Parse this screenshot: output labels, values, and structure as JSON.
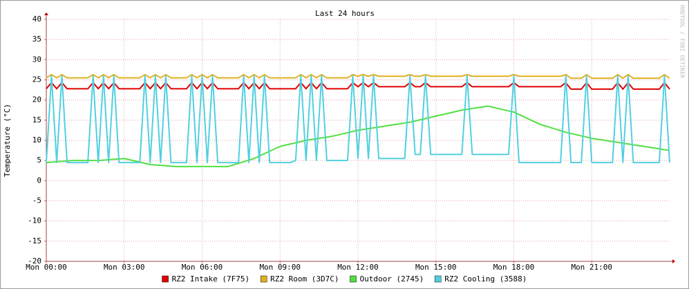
{
  "chart_data": {
    "type": "line",
    "title": "Last 24 hours",
    "y_label": "Temperature (°C)",
    "watermark": "RRDTOOL / TOBI OETIKER",
    "xlim": [
      0,
      24
    ],
    "ylim": [
      -20,
      40
    ],
    "grid": true,
    "xticks": [
      {
        "value": 0,
        "label": "Mon 00:00"
      },
      {
        "value": 3,
        "label": "Mon 03:00"
      },
      {
        "value": 6,
        "label": "Mon 06:00"
      },
      {
        "value": 9,
        "label": "Mon 09:00"
      },
      {
        "value": 12,
        "label": "Mon 12:00"
      },
      {
        "value": 15,
        "label": "Mon 15:00"
      },
      {
        "value": 18,
        "label": "Mon 18:00"
      },
      {
        "value": 21,
        "label": "Mon 21:00"
      }
    ],
    "yticks": [
      -20,
      -15,
      -10,
      -5,
      0,
      5,
      10,
      15,
      20,
      25,
      30,
      35,
      40
    ],
    "x": [
      0,
      0.2,
      0.4,
      0.6,
      0.8,
      1,
      1.2,
      1.4,
      1.6,
      1.8,
      2,
      2.2,
      2.4,
      2.6,
      2.8,
      3,
      3.2,
      3.4,
      3.6,
      3.8,
      4,
      4.2,
      4.4,
      4.6,
      4.8,
      5,
      5.2,
      5.4,
      5.6,
      5.8,
      6,
      6.2,
      6.4,
      6.6,
      6.8,
      7,
      7.2,
      7.4,
      7.6,
      7.8,
      8,
      8.2,
      8.4,
      8.6,
      8.8,
      9,
      9.2,
      9.4,
      9.6,
      9.8,
      10,
      10.2,
      10.4,
      10.6,
      10.8,
      11,
      11.2,
      11.4,
      11.6,
      11.8,
      12,
      12.2,
      12.4,
      12.6,
      12.8,
      13,
      13.2,
      13.4,
      13.6,
      13.8,
      14,
      14.2,
      14.4,
      14.6,
      14.8,
      15,
      15.2,
      15.4,
      15.6,
      15.8,
      16,
      16.2,
      16.4,
      16.6,
      16.8,
      17,
      17.2,
      17.4,
      17.6,
      17.8,
      18,
      18.2,
      18.4,
      18.6,
      18.8,
      19,
      19.2,
      19.4,
      19.6,
      19.8,
      20,
      20.2,
      20.4,
      20.6,
      20.8,
      21,
      21.2,
      21.4,
      21.6,
      21.8,
      22,
      22.2,
      22.4,
      22.6,
      22.8,
      23,
      23.2,
      23.4,
      23.6,
      23.8,
      24
    ],
    "series": [
      {
        "name": "RZ2 Intake (7F75)",
        "color": "#e00000",
        "values": [
          22.8,
          24.3,
          22.8,
          24.3,
          22.8,
          22.8,
          22.8,
          22.8,
          22.8,
          24.3,
          22.8,
          24.3,
          22.8,
          24.3,
          22.8,
          22.8,
          22.8,
          22.8,
          22.8,
          24.3,
          22.8,
          24.3,
          22.8,
          24.3,
          22.8,
          22.8,
          22.8,
          22.8,
          24.3,
          22.8,
          24.3,
          22.8,
          24.3,
          22.8,
          22.8,
          22.8,
          22.8,
          22.8,
          24.3,
          22.8,
          24.3,
          22.8,
          24.3,
          22.8,
          22.8,
          22.8,
          22.8,
          22.8,
          22.8,
          24.3,
          22.8,
          24.3,
          22.8,
          24.3,
          22.8,
          22.8,
          22.8,
          22.8,
          22.8,
          24.3,
          23.3,
          24.3,
          23.3,
          24.3,
          23.3,
          23.3,
          23.3,
          23.3,
          23.3,
          23.3,
          24.3,
          23.3,
          23.3,
          24.3,
          23.3,
          23.3,
          23.3,
          23.3,
          23.3,
          23.3,
          23.3,
          24.3,
          23.3,
          23.3,
          23.3,
          23.3,
          23.3,
          23.3,
          23.3,
          23.3,
          24.3,
          23.3,
          23.3,
          23.3,
          23.3,
          23.3,
          23.3,
          23.3,
          23.3,
          23.3,
          24.3,
          22.7,
          22.7,
          22.7,
          24.3,
          22.7,
          22.7,
          22.7,
          22.7,
          22.7,
          24.3,
          22.7,
          24.3,
          22.7,
          22.7,
          22.7,
          22.7,
          22.7,
          22.7,
          24.3,
          22.7
        ]
      },
      {
        "name": "RZ2 Room (3D7C)",
        "color": "#e0b020",
        "values": [
          25.5,
          26.3,
          25.5,
          26.3,
          25.5,
          25.5,
          25.5,
          25.5,
          25.5,
          26.3,
          25.5,
          26.3,
          25.5,
          26.3,
          25.5,
          25.5,
          25.5,
          25.5,
          25.5,
          26.3,
          25.5,
          26.3,
          25.5,
          26.3,
          25.5,
          25.5,
          25.5,
          25.5,
          26.3,
          25.5,
          26.3,
          25.5,
          26.3,
          25.5,
          25.5,
          25.5,
          25.5,
          25.5,
          26.3,
          25.5,
          26.3,
          25.5,
          26.3,
          25.5,
          25.5,
          25.5,
          25.5,
          25.5,
          25.5,
          26.3,
          25.5,
          26.3,
          25.5,
          26.3,
          25.5,
          25.5,
          25.5,
          25.5,
          25.5,
          26.3,
          25.9,
          26.3,
          25.9,
          26.3,
          25.9,
          25.9,
          25.9,
          25.9,
          25.9,
          25.9,
          26.3,
          25.9,
          25.9,
          26.3,
          25.9,
          25.9,
          25.9,
          25.9,
          25.9,
          25.9,
          25.9,
          26.3,
          25.9,
          25.9,
          25.9,
          25.9,
          25.9,
          25.9,
          25.9,
          25.9,
          26.3,
          25.9,
          25.9,
          25.9,
          25.9,
          25.9,
          25.9,
          25.9,
          25.9,
          25.9,
          26.3,
          25.4,
          25.4,
          25.4,
          26.3,
          25.4,
          25.4,
          25.4,
          25.4,
          25.4,
          26.3,
          25.4,
          26.3,
          25.4,
          25.4,
          25.4,
          25.4,
          25.4,
          25.4,
          26.3,
          25.4
        ]
      },
      {
        "name": "Outdoor (2745)",
        "color": "#50e040",
        "values": [
          4.5,
          4.6,
          4.7,
          4.8,
          4.9,
          5,
          5,
          5,
          5,
          5,
          5,
          5.1,
          5.2,
          5.3,
          5.4,
          5.5,
          5.2,
          4.9,
          4.6,
          4.3,
          4,
          3.9,
          3.8,
          3.7,
          3.6,
          3.5,
          3.5,
          3.5,
          3.5,
          3.5,
          3.5,
          3.5,
          3.5,
          3.5,
          3.5,
          3.5,
          3.9,
          4.3,
          4.7,
          5.1,
          5.5,
          6.1,
          6.7,
          7.3,
          7.9,
          8.5,
          8.8,
          9.1,
          9.4,
          9.7,
          10,
          10.2,
          10.4,
          10.6,
          10.8,
          11,
          11.3,
          11.6,
          11.9,
          12.2,
          12.5,
          12.7,
          12.9,
          13.1,
          13.3,
          13.5,
          13.7,
          13.9,
          14.1,
          14.3,
          14.5,
          14.8,
          15.1,
          15.4,
          15.7,
          16,
          16.3,
          16.6,
          16.9,
          17.2,
          17.5,
          17.7,
          17.9,
          18.1,
          18.3,
          18.5,
          18.2,
          17.9,
          17.6,
          17.3,
          17,
          16.4,
          15.8,
          15.2,
          14.6,
          14,
          13.6,
          13.2,
          12.8,
          12.4,
          12,
          11.7,
          11.4,
          11.1,
          10.8,
          10.5,
          10.3,
          10.1,
          9.9,
          9.7,
          9.5,
          9.3,
          9.1,
          8.9,
          8.7,
          8.5,
          8.3,
          8.1,
          7.9,
          7.7,
          7.5
        ]
      },
      {
        "name": "RZ2 Cooling (3588)",
        "color": "#50d0e0",
        "values": [
          4.5,
          26,
          4.5,
          26,
          4.5,
          4.5,
          4.5,
          4.5,
          4.5,
          26,
          4.5,
          26,
          4.5,
          26,
          4.5,
          4.5,
          4.5,
          4.5,
          4.5,
          26,
          4.5,
          26,
          4.5,
          26,
          4.5,
          4.5,
          4.5,
          4.5,
          26,
          4.5,
          26,
          4.5,
          26,
          4.5,
          4.5,
          4.5,
          4.5,
          4.5,
          26,
          4.5,
          26,
          4.5,
          26,
          4.5,
          4.5,
          4.5,
          4.5,
          4.5,
          5,
          26,
          5,
          26,
          5,
          26,
          5,
          5,
          5,
          5,
          5,
          26,
          5.5,
          26,
          5.5,
          26,
          5.5,
          5.5,
          5.5,
          5.5,
          5.5,
          5.5,
          26,
          6.5,
          6.5,
          26,
          6.5,
          6.5,
          6.5,
          6.5,
          6.5,
          6.5,
          6.5,
          26,
          6.5,
          6.5,
          6.5,
          6.5,
          6.5,
          6.5,
          6.5,
          6.5,
          26,
          4.5,
          4.5,
          4.5,
          4.5,
          4.5,
          4.5,
          4.5,
          4.5,
          4.5,
          26,
          4.5,
          4.5,
          4.5,
          26,
          4.5,
          4.5,
          4.5,
          4.5,
          4.5,
          26,
          4.5,
          26,
          4.5,
          4.5,
          4.5,
          4.5,
          4.5,
          4.5,
          26,
          4.5
        ]
      }
    ]
  }
}
